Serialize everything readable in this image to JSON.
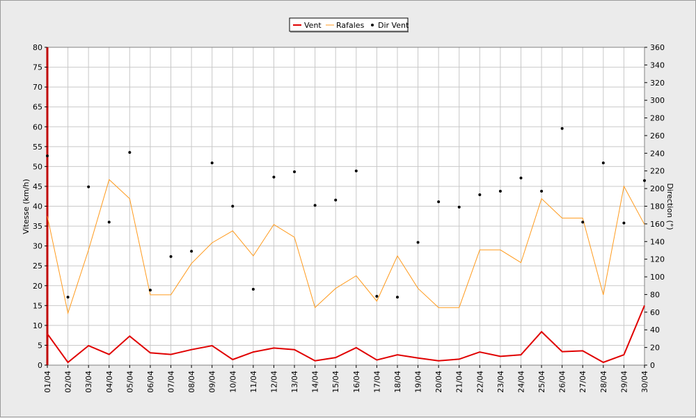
{
  "chart_data": {
    "type": "line",
    "title": "",
    "legend": {
      "placement": "top-center",
      "entries": [
        "Vent",
        "Rafales",
        "Dir Vent"
      ]
    },
    "x": {
      "categories": [
        "01/04",
        "02/04",
        "03/04",
        "04/04",
        "05/04",
        "06/04",
        "07/04",
        "08/04",
        "09/04",
        "10/04",
        "11/04",
        "12/04",
        "13/04",
        "14/04",
        "15/04",
        "16/04",
        "17/04",
        "18/04",
        "19/04",
        "20/04",
        "21/04",
        "22/04",
        "23/04",
        "24/04",
        "25/04",
        "26/04",
        "27/04",
        "28/04",
        "29/04",
        "30/04"
      ]
    },
    "y_left": {
      "label": "Vitesse (km/h)",
      "range": [
        0,
        80
      ],
      "ticks": [
        "0",
        "5",
        "10",
        "15",
        "20",
        "25",
        "30",
        "35",
        "40",
        "45",
        "50",
        "55",
        "60",
        "65",
        "70",
        "75",
        "80"
      ]
    },
    "y_right": {
      "label": "Direction (°)",
      "range": [
        0,
        360
      ],
      "ticks": [
        "0",
        "20",
        "40",
        "60",
        "80",
        "100",
        "120",
        "140",
        "160",
        "180",
        "200",
        "220",
        "240",
        "260",
        "280",
        "300",
        "320",
        "340",
        "360"
      ]
    },
    "grid": true,
    "series": [
      {
        "name": "Vent",
        "type": "line",
        "axis": "left",
        "color": "#e00000",
        "values": [
          7.9,
          0.7,
          4.9,
          2.7,
          7.3,
          3.1,
          2.7,
          3.9,
          4.9,
          1.4,
          3.3,
          4.3,
          3.9,
          1.1,
          1.9,
          4.4,
          1.3,
          2.6,
          1.8,
          1.1,
          1.5,
          3.3,
          2.2,
          2.6,
          8.4,
          3.4,
          3.6,
          0.7,
          2.6,
          15.0
        ]
      },
      {
        "name": "Rafales",
        "type": "line",
        "axis": "left",
        "color": "#ff9a1c",
        "values": [
          37.5,
          13.1,
          29.0,
          46.7,
          41.9,
          17.7,
          17.7,
          25.6,
          30.8,
          33.8,
          27.5,
          35.4,
          32.2,
          14.5,
          19.3,
          22.5,
          16.1,
          27.5,
          19.3,
          14.5,
          14.5,
          29.0,
          29.0,
          25.8,
          41.9,
          37.0,
          37.0,
          17.7,
          45.0,
          35.4
        ]
      },
      {
        "name": "Dir Vent",
        "type": "scatter",
        "axis": "right",
        "color": "#000000",
        "values": [
          237,
          77,
          202,
          162,
          241,
          85,
          123,
          129,
          229,
          180,
          86,
          213,
          219,
          181,
          187,
          220,
          78,
          77,
          139,
          185,
          179,
          193,
          197,
          212,
          197,
          268,
          162,
          229,
          161,
          209
        ]
      }
    ]
  }
}
